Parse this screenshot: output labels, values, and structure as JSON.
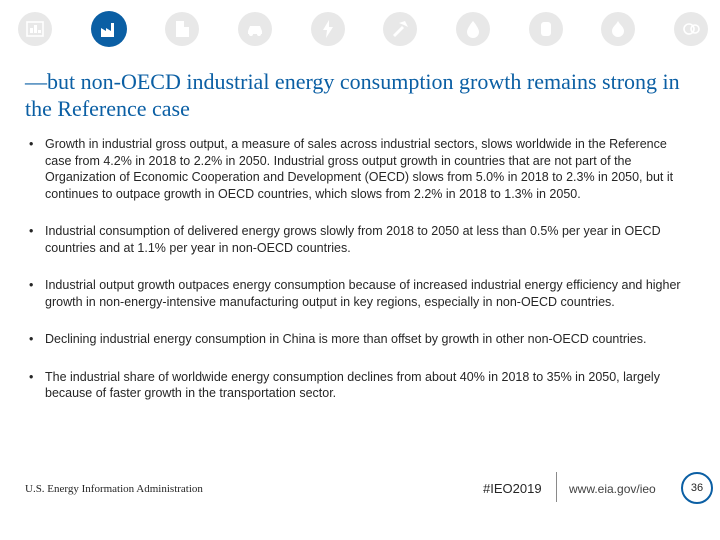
{
  "nav": {
    "icons": [
      {
        "name": "overview-icon",
        "active": false
      },
      {
        "name": "industrial-icon",
        "active": true
      },
      {
        "name": "buildings-icon",
        "active": false
      },
      {
        "name": "transportation-icon",
        "active": false
      },
      {
        "name": "electricity-icon",
        "active": false
      },
      {
        "name": "coal-icon",
        "active": false
      },
      {
        "name": "petroleum-icon",
        "active": false
      },
      {
        "name": "natural-gas-icon",
        "active": false
      },
      {
        "name": "co2-icon",
        "active": false
      },
      {
        "name": "summary-icon",
        "active": false
      }
    ],
    "colors": {
      "active": "#0b5fa4",
      "inactive": "#e8e8e8",
      "glyph": "#ffffff"
    }
  },
  "slide": {
    "title": "—but non-OECD industrial energy consumption growth remains strong in the Reference case",
    "bullet_marker": "•",
    "bullets": [
      "Growth in industrial gross output, a measure of sales across industrial sectors, slows worldwide in the Reference case from 4.2% in 2018 to 2.2% in 2050. Industrial gross output growth in countries that are not part of the Organization of Economic Cooperation and Development (OECD) slows from 5.0% in 2018 to 2.3% in 2050, but it continues to outpace growth in OECD countries, which slows from 2.2% in 2018 to 1.3% in 2050.",
      "Industrial consumption of delivered energy grows slowly from 2018 to 2050 at less than 0.5% per year in OECD countries and at 1.1% per year in non-OECD countries.",
      "Industrial output growth outpaces energy consumption because of increased industrial energy efficiency and higher growth in non-energy-intensive manufacturing output in key regions, especially in non-OECD countries.",
      "Declining industrial energy consumption in China is more than offset by growth in other non-OECD countries.",
      "The industrial share of worldwide energy consumption declines from about 40% in 2018 to 35% in 2050, largely because of faster growth in the transportation sector."
    ]
  },
  "footer": {
    "organization": "U.S. Energy Information Administration",
    "hashtag": "#IEO2019",
    "url": "www.eia.gov/ieo",
    "page_number": "36"
  }
}
